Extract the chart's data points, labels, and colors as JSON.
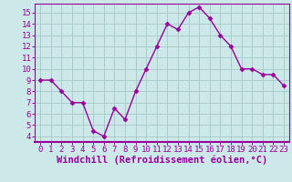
{
  "x": [
    0,
    1,
    2,
    3,
    4,
    5,
    6,
    7,
    8,
    9,
    10,
    11,
    12,
    13,
    14,
    15,
    16,
    17,
    18,
    19,
    20,
    21,
    22,
    23
  ],
  "y": [
    9.0,
    9.0,
    8.0,
    7.0,
    7.0,
    4.5,
    4.0,
    6.5,
    5.5,
    8.0,
    10.0,
    12.0,
    14.0,
    13.5,
    15.0,
    15.5,
    14.5,
    13.0,
    12.0,
    10.0,
    10.0,
    9.5,
    9.5,
    8.5
  ],
  "line_color": "#990099",
  "marker_color": "#990099",
  "bg_color": "#cce8e8",
  "grid_color": "#aacccc",
  "xlabel": "Windchill (Refroidissement éolien,°C)",
  "xlabel_color": "#990099",
  "ylim": [
    3.5,
    15.8
  ],
  "xlim": [
    -0.5,
    23.5
  ],
  "yticks": [
    4,
    5,
    6,
    7,
    8,
    9,
    10,
    11,
    12,
    13,
    14,
    15
  ],
  "xticks": [
    0,
    1,
    2,
    3,
    4,
    5,
    6,
    7,
    8,
    9,
    10,
    11,
    12,
    13,
    14,
    15,
    16,
    17,
    18,
    19,
    20,
    21,
    22,
    23
  ],
  "tick_color": "#990099",
  "tick_fontsize": 6.5,
  "xlabel_fontsize": 7.5,
  "spine_color": "#990099",
  "marker_size": 2.5,
  "line_width": 1.0
}
